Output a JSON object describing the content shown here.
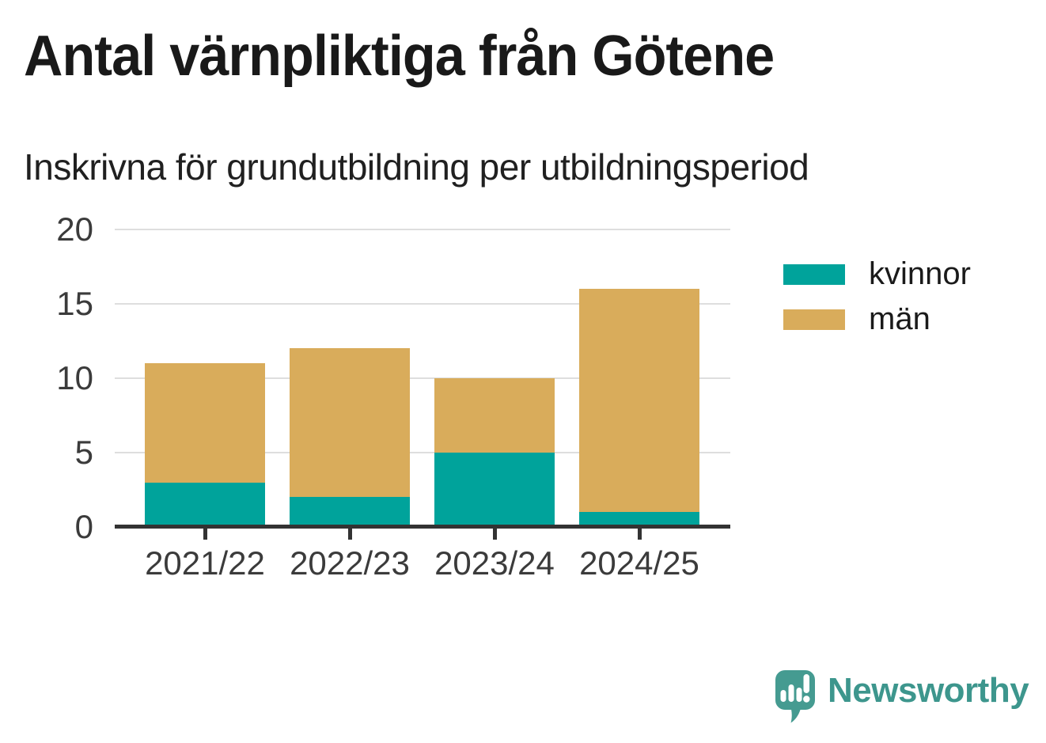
{
  "header": {
    "title": "Antal värnpliktiga från Götene",
    "subtitle": "Inskrivna för grundutbildning per utbildningsperiod"
  },
  "chart_data": {
    "type": "bar",
    "stacked": true,
    "title": "Antal värnpliktiga från Götene",
    "subtitle": "Inskrivna för grundutbildning per utbildningsperiod",
    "categories": [
      "2021/22",
      "2022/23",
      "2023/24",
      "2024/25"
    ],
    "series": [
      {
        "name": "kvinnor",
        "color": "#00A39B",
        "values": [
          3,
          2,
          5,
          1
        ]
      },
      {
        "name": "män",
        "color": "#D9AC5B",
        "values": [
          8,
          10,
          5,
          15
        ]
      }
    ],
    "totals": [
      11,
      12,
      10,
      16
    ],
    "xlabel": "",
    "ylabel": "",
    "ylim": [
      0,
      20
    ],
    "yticks": [
      0,
      5,
      10,
      15,
      20
    ],
    "grid": "horizontal",
    "legend_position": "right"
  },
  "branding": {
    "name": "Newsworthy",
    "icon": "newsworthy-speech-bubble-bar-chart-icon"
  },
  "style": {
    "colors": {
      "kvinnor_teal": "#00A39B",
      "man_gold": "#D9AC5B",
      "axis": "#333333",
      "gridline": "#DEDEDE",
      "title_text": "#191919",
      "tick_text": "#3B3B3B",
      "legend_text": "#1A1A1A",
      "brand_icon_teal": "#459B91",
      "brand_text_teal": "#3D968D",
      "background": "#FFFFFF"
    }
  }
}
